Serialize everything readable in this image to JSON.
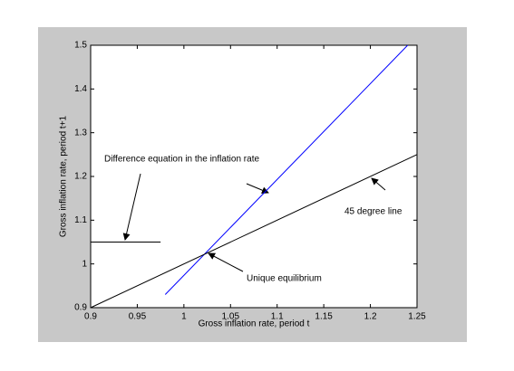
{
  "chart_data": {
    "type": "line",
    "xlabel": "Gross inflation rate, period t",
    "ylabel": "Gross inflation rate, period t+1",
    "xlim": [
      0.9,
      1.25
    ],
    "ylim": [
      0.9,
      1.5
    ],
    "xticks": [
      0.9,
      0.95,
      1,
      1.05,
      1.1,
      1.15,
      1.2,
      1.25
    ],
    "yticks": [
      0.9,
      1,
      1.1,
      1.2,
      1.3,
      1.4,
      1.5
    ],
    "series": [
      {
        "color": "#0000ff",
        "x": [
          0.98,
          1.24
        ],
        "values": [
          0.93,
          1.5
        ]
      },
      {
        "color": "#000000",
        "x": [
          0.9,
          1.25
        ],
        "values": [
          0.9,
          1.25
        ]
      },
      {
        "color": "#000000",
        "x": [
          0.9,
          0.975
        ],
        "values": [
          1.05,
          1.05
        ]
      }
    ],
    "annotations": [
      "Difference equation in the inflation rate",
      "45 degree line",
      "Unique equilibrium"
    ]
  }
}
